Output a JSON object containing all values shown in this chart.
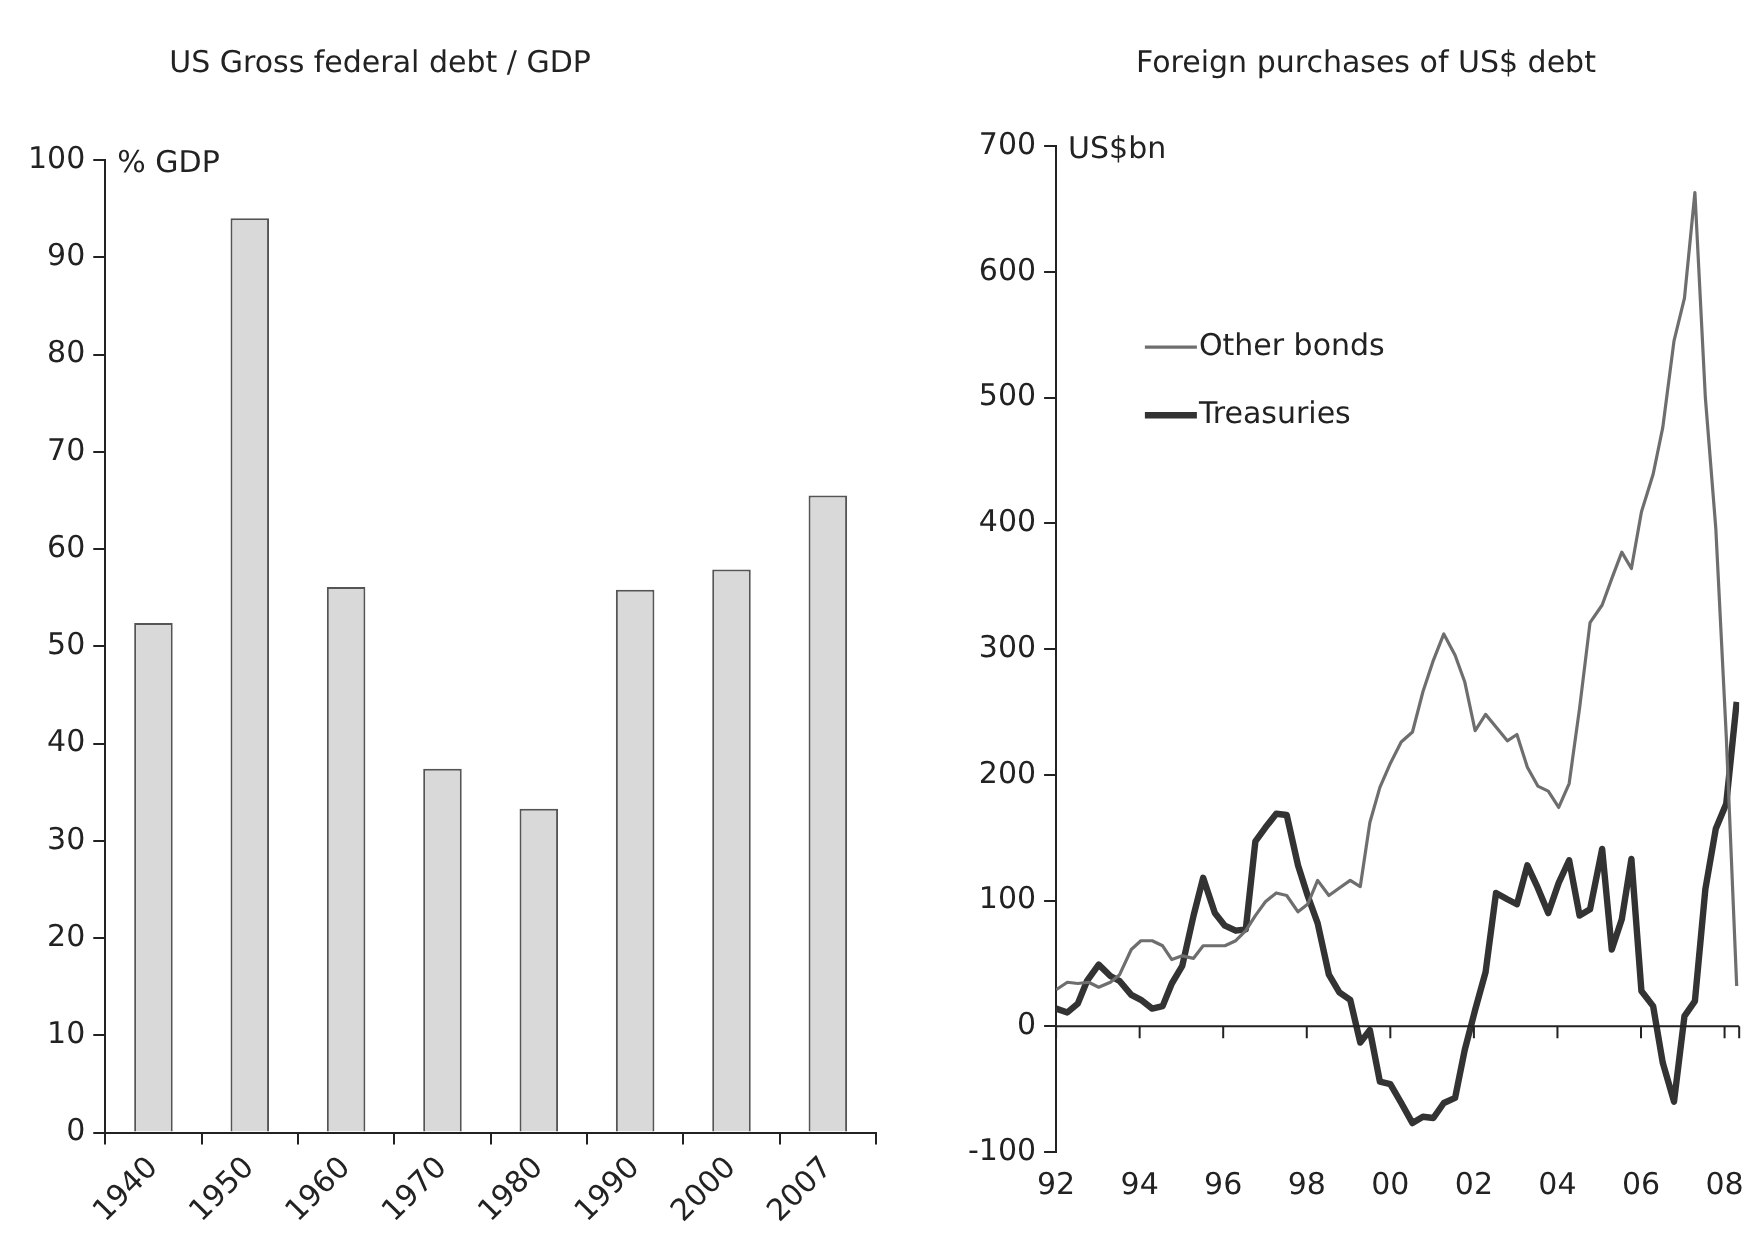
{
  "chart_data": [
    {
      "type": "bar",
      "title": "US Gross federal debt / GDP",
      "ylabel": "% GDP",
      "categories": [
        "1940",
        "1950",
        "1960",
        "1970",
        "1980",
        "1990",
        "2000",
        "2007"
      ],
      "values": [
        52.4,
        94.0,
        56.1,
        37.4,
        33.3,
        55.8,
        57.9,
        65.5
      ],
      "color": "#d9d9d9",
      "ylim": [
        0,
        100
      ],
      "yticks": [
        0,
        10,
        20,
        30,
        40,
        50,
        60,
        70,
        80,
        90,
        100
      ],
      "grid": false,
      "legend": false
    },
    {
      "type": "line",
      "title": "Foreign purchases of US$ debt",
      "ylabel": "US$bn",
      "series": [
        {
          "name": "Other bonds",
          "color": "#6e6e6e",
          "x": [
            1992.0,
            1992.27,
            1992.52,
            1992.78,
            1993.02,
            1993.3,
            1993.52,
            1993.8,
            1994.03,
            1994.3,
            1994.55,
            1994.77,
            1995.02,
            1995.29,
            1995.52,
            1995.8,
            1996.04,
            1996.3,
            1996.54,
            1996.77,
            1997.01,
            1997.27,
            1997.52,
            1997.79,
            1998.02,
            1998.26,
            1998.53,
            1998.78,
            1999.04,
            1999.28,
            1999.51,
            1999.75,
            2000.0,
            2000.26,
            2000.53,
            2000.78,
            2001.03,
            2001.28,
            2001.55,
            2001.78,
            2002.03,
            2002.28,
            2002.53,
            2002.8,
            2003.03,
            2003.28,
            2003.53,
            2003.78,
            2004.03,
            2004.28,
            2004.53,
            2004.78,
            2005.07,
            2005.3,
            2005.54,
            2005.77,
            2006.01,
            2006.29,
            2006.52,
            2006.79,
            2007.04,
            2007.29,
            2007.54,
            2007.79,
            2008.04,
            2008.29
          ],
          "values": [
            29,
            35,
            34,
            35,
            31,
            35,
            41,
            61,
            68,
            68,
            64,
            53,
            56,
            54,
            64,
            64,
            64,
            68,
            76,
            88,
            99,
            106,
            104,
            91,
            97,
            116,
            104,
            110,
            116,
            111,
            162,
            190,
            209,
            226,
            234,
            266,
            291,
            312,
            295,
            274,
            235,
            248,
            238,
            227,
            232,
            206,
            191,
            187,
            174,
            193,
            253,
            321,
            335,
            356,
            377,
            364,
            409,
            439,
            476,
            545,
            579,
            663,
            500,
            396,
            231,
            32
          ]
        },
        {
          "name": "Treasuries",
          "color": "#333333",
          "x": [
            1992.0,
            1992.27,
            1992.52,
            1992.74,
            1993.02,
            1993.3,
            1993.52,
            1993.8,
            1994.03,
            1994.3,
            1994.55,
            1994.77,
            1995.02,
            1995.29,
            1995.52,
            1995.8,
            1996.04,
            1996.3,
            1996.54,
            1996.77,
            1997.01,
            1997.27,
            1997.52,
            1997.79,
            1998.02,
            1998.26,
            1998.53,
            1998.78,
            1999.04,
            1999.28,
            1999.51,
            1999.75,
            2000.0,
            2000.26,
            2000.53,
            2000.78,
            2001.03,
            2001.28,
            2001.55,
            2001.78,
            2002.03,
            2002.28,
            2002.53,
            2002.8,
            2003.03,
            2003.28,
            2003.53,
            2003.78,
            2004.03,
            2004.28,
            2004.53,
            2004.78,
            2005.07,
            2005.3,
            2005.54,
            2005.77,
            2006.01,
            2006.29,
            2006.52,
            2006.79,
            2007.04,
            2007.29,
            2007.54,
            2007.79,
            2008.04,
            2008.29
          ],
          "values": [
            14,
            11,
            18,
            36,
            49,
            40,
            36,
            25,
            21,
            14,
            16,
            34,
            48,
            88,
            118,
            90,
            80,
            76,
            77,
            147,
            158,
            169,
            168,
            128,
            104,
            82,
            41,
            27,
            21,
            -13,
            -3,
            -44,
            -46,
            -61,
            -77,
            -72,
            -73,
            -61,
            -57,
            -19,
            13,
            43,
            106,
            101,
            97,
            128,
            110,
            90,
            114,
            132,
            88,
            93,
            141,
            61,
            85,
            133,
            28,
            16,
            -29,
            -60,
            8,
            20,
            109,
            157,
            177,
            258
          ]
        }
      ],
      "xlim": [
        1992,
        2008.35
      ],
      "xticks": [
        {
          "value": 1992,
          "label": "92"
        },
        {
          "value": 1994,
          "label": "94"
        },
        {
          "value": 1996,
          "label": "96"
        },
        {
          "value": 1998,
          "label": "98"
        },
        {
          "value": 2000,
          "label": "00"
        },
        {
          "value": 2002,
          "label": "02"
        },
        {
          "value": 2004,
          "label": "04"
        },
        {
          "value": 2006,
          "label": "06"
        },
        {
          "value": 2008,
          "label": "08"
        }
      ],
      "ylim": [
        -100,
        700
      ],
      "yticks": [
        -100,
        0,
        100,
        200,
        300,
        400,
        500,
        600,
        700
      ],
      "ref_lines": [
        {
          "axis": "y",
          "value": 0,
          "color": "#222222"
        }
      ],
      "grid": false,
      "legend": "top left",
      "marker": "none",
      "line_style": "solid"
    }
  ]
}
